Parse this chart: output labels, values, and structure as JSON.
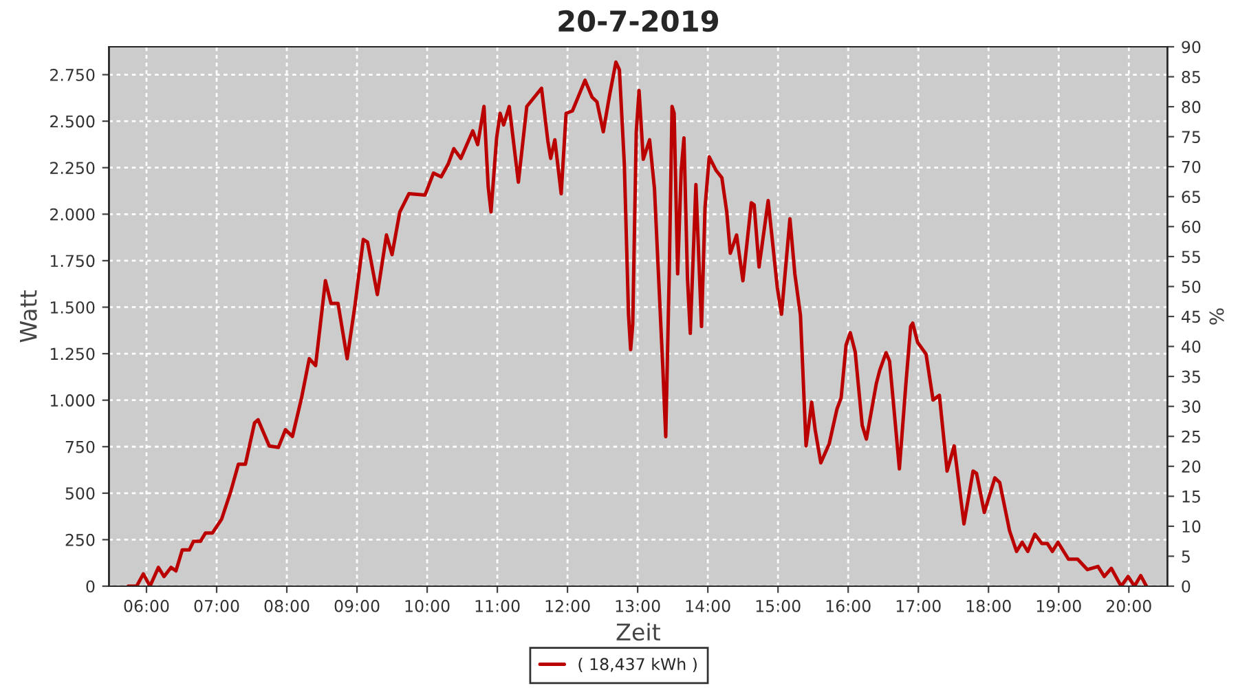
{
  "chart_data": {
    "type": "line",
    "title": "20-7-2019",
    "xlabel": "Zeit",
    "ylabel": "Watt",
    "y2label": "%",
    "xlim": [
      5.465,
      20.55
    ],
    "xticks": [
      {
        "value": 6,
        "label": "06:00"
      },
      {
        "value": 7,
        "label": "07:00"
      },
      {
        "value": 8,
        "label": "08:00"
      },
      {
        "value": 9,
        "label": "09:00"
      },
      {
        "value": 10,
        "label": "10:00"
      },
      {
        "value": 11,
        "label": "11:00"
      },
      {
        "value": 12,
        "label": "12:00"
      },
      {
        "value": 13,
        "label": "13:00"
      },
      {
        "value": 14,
        "label": "14:00"
      },
      {
        "value": 15,
        "label": "15:00"
      },
      {
        "value": 16,
        "label": "16:00"
      },
      {
        "value": 17,
        "label": "17:00"
      },
      {
        "value": 18,
        "label": "18:00"
      },
      {
        "value": 19,
        "label": "19:00"
      },
      {
        "value": 20,
        "label": "20:00"
      }
    ],
    "ylim": [
      0,
      2900
    ],
    "yticks": [
      0,
      250,
      500,
      750,
      {
        "value": 1000,
        "label": "1.000"
      },
      {
        "value": 1250,
        "label": "1.250"
      },
      {
        "value": 1500,
        "label": "1.500"
      },
      {
        "value": 1750,
        "label": "1.750"
      },
      {
        "value": 2000,
        "label": "2.000"
      },
      {
        "value": 2250,
        "label": "2.250"
      },
      {
        "value": 2500,
        "label": "2.500"
      },
      {
        "value": 2750,
        "label": "2.750"
      }
    ],
    "y2lim": [
      0,
      90
    ],
    "y2ticks": [
      0,
      5,
      10,
      15,
      20,
      25,
      30,
      35,
      40,
      45,
      50,
      55,
      60,
      65,
      70,
      75,
      80,
      85,
      90
    ],
    "grid": true,
    "legend": "bottom",
    "line_style": "solid",
    "marker": "none",
    "series": [
      {
        "name": "( 18,437 kWh )",
        "color": "#bb0000",
        "x": [
          5.74,
          5.86,
          5.955,
          6.05,
          6.17,
          6.25,
          6.35,
          6.42,
          6.51,
          6.61,
          6.67,
          6.77,
          6.84,
          6.94,
          7.07,
          7.2,
          7.31,
          7.41,
          7.54,
          7.59,
          7.75,
          7.88,
          7.98,
          8.08,
          8.21,
          8.32,
          8.41,
          8.55,
          8.63,
          8.73,
          8.86,
          8.97,
          9.09,
          9.15,
          9.29,
          9.42,
          9.5,
          9.61,
          9.74,
          9.97,
          10.09,
          10.2,
          10.3,
          10.38,
          10.48,
          10.65,
          10.72,
          10.81,
          10.87,
          10.91,
          10.99,
          11.04,
          11.09,
          11.17,
          11.3,
          11.42,
          11.63,
          11.72,
          11.76,
          11.82,
          11.91,
          11.98,
          12.07,
          12.25,
          12.35,
          12.42,
          12.51,
          12.6,
          12.69,
          12.74,
          12.81,
          12.87,
          12.9,
          12.93,
          12.98,
          13.02,
          13.08,
          13.17,
          13.24,
          13.36,
          13.4,
          13.45,
          13.49,
          13.52,
          13.57,
          13.62,
          13.66,
          13.71,
          13.75,
          13.83,
          13.91,
          13.96,
          14.02,
          14.12,
          14.2,
          14.27,
          14.32,
          14.41,
          14.5,
          14.62,
          14.66,
          14.73,
          14.86,
          14.99,
          15.05,
          15.17,
          15.24,
          15.32,
          15.4,
          15.48,
          15.53,
          15.61,
          15.73,
          15.84,
          15.9,
          15.97,
          16.03,
          16.1,
          16.2,
          16.26,
          16.4,
          16.45,
          16.54,
          16.59,
          16.65,
          16.73,
          16.82,
          16.89,
          16.92,
          16.99,
          17.11,
          17.21,
          17.3,
          17.41,
          17.51,
          17.65,
          17.78,
          17.83,
          17.94,
          18.09,
          18.16,
          18.3,
          18.4,
          18.48,
          18.56,
          18.66,
          18.76,
          18.84,
          18.91,
          18.99,
          19.14,
          19.27,
          19.41,
          19.56,
          19.65,
          19.75,
          19.89,
          19.99,
          20.08,
          20.17,
          20.25
        ],
        "values": [
          0,
          0,
          66,
          0,
          101,
          52,
          101,
          82,
          195,
          195,
          241,
          241,
          286,
          286,
          360,
          508,
          656,
          656,
          878,
          895,
          754,
          746,
          841,
          805,
          1013,
          1223,
          1186,
          1642,
          1520,
          1520,
          1223,
          1507,
          1864,
          1850,
          1568,
          1888,
          1783,
          2012,
          2110,
          2103,
          2221,
          2201,
          2270,
          2352,
          2300,
          2448,
          2374,
          2579,
          2147,
          2012,
          2410,
          2542,
          2480,
          2579,
          2172,
          2579,
          2677,
          2394,
          2300,
          2400,
          2110,
          2542,
          2555,
          2720,
          2629,
          2604,
          2443,
          2640,
          2818,
          2776,
          2270,
          1457,
          1272,
          1408,
          2443,
          2665,
          2295,
          2400,
          2135,
          1161,
          804,
          1679,
          2579,
          2542,
          1679,
          2234,
          2410,
          1654,
          1359,
          2159,
          1396,
          2036,
          2308,
          2234,
          2196,
          2012,
          1790,
          1888,
          1642,
          2061,
          2050,
          1716,
          2073,
          1605,
          1462,
          1975,
          1679,
          1457,
          754,
          989,
          840,
          663,
          766,
          952,
          1013,
          1297,
          1363,
          1260,
          865,
          791,
          1087,
          1161,
          1255,
          1210,
          964,
          631,
          1075,
          1396,
          1414,
          1310,
          1248,
          1001,
          1026,
          619,
          754,
          335,
          619,
          606,
          397,
          582,
          557,
          298,
          187,
          236,
          187,
          279,
          229,
          229,
          187,
          236,
          145,
          145,
          89,
          106,
          52,
          96,
          0,
          52,
          0,
          57,
          0
        ]
      }
    ]
  }
}
